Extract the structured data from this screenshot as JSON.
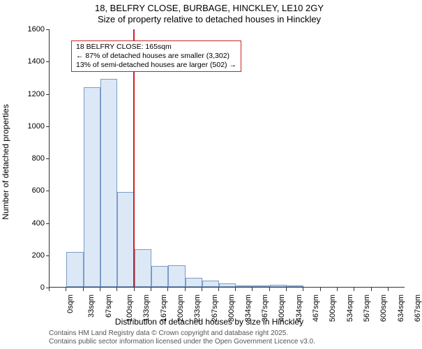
{
  "title_line1": "18, BELFRY CLOSE, BURBAGE, HINCKLEY, LE10 2GY",
  "title_line2": "Size of property relative to detached houses in Hinckley",
  "ylabel": "Number of detached properties",
  "xlabel": "Distribution of detached houses by size in Hinckley",
  "footer1": "Contains HM Land Registry data © Crown copyright and database right 2025.",
  "footer2": "Contains public sector information licensed under the Open Government Licence v3.0.",
  "chart": {
    "type": "histogram",
    "ylim": [
      0,
      1600
    ],
    "ytick_step": 200,
    "bar_fill": "#dce8f6",
    "bar_stroke": "#7a9cc6",
    "reference_line_color": "#cc2222",
    "reference_line_x": 165,
    "annotation_border": "#cc2222",
    "bins": [
      {
        "start": 0,
        "end": 33,
        "count": 0,
        "label": "0sqm"
      },
      {
        "start": 33,
        "end": 67,
        "count": 215,
        "label": "33sqm"
      },
      {
        "start": 67,
        "end": 100,
        "count": 1235,
        "label": "67sqm"
      },
      {
        "start": 100,
        "end": 133,
        "count": 1290,
        "label": "100sqm"
      },
      {
        "start": 133,
        "end": 167,
        "count": 590,
        "label": "133sqm"
      },
      {
        "start": 167,
        "end": 200,
        "count": 235,
        "label": "167sqm"
      },
      {
        "start": 200,
        "end": 233,
        "count": 130,
        "label": "200sqm"
      },
      {
        "start": 233,
        "end": 267,
        "count": 135,
        "label": "233sqm"
      },
      {
        "start": 267,
        "end": 300,
        "count": 55,
        "label": "267sqm"
      },
      {
        "start": 300,
        "end": 334,
        "count": 40,
        "label": "300sqm"
      },
      {
        "start": 334,
        "end": 367,
        "count": 20,
        "label": "334sqm"
      },
      {
        "start": 367,
        "end": 400,
        "count": 5,
        "label": "367sqm"
      },
      {
        "start": 400,
        "end": 434,
        "count": 5,
        "label": "400sqm"
      },
      {
        "start": 434,
        "end": 467,
        "count": 15,
        "label": "434sqm"
      },
      {
        "start": 467,
        "end": 500,
        "count": 5,
        "label": "467sqm"
      },
      {
        "start": 500,
        "end": 534,
        "count": 0,
        "label": "500sqm"
      },
      {
        "start": 534,
        "end": 567,
        "count": 0,
        "label": "534sqm"
      },
      {
        "start": 567,
        "end": 600,
        "count": 0,
        "label": "567sqm"
      },
      {
        "start": 600,
        "end": 634,
        "count": 0,
        "label": "600sqm"
      },
      {
        "start": 634,
        "end": 667,
        "count": 0,
        "label": "634sqm"
      },
      {
        "start": 667,
        "end": 700,
        "count": 0,
        "label": "667sqm"
      }
    ],
    "x_data_min": 0,
    "x_data_max": 700,
    "annotation": {
      "line1": "18 BELFRY CLOSE: 165sqm",
      "line2": "← 87% of detached houses are smaller (3,302)",
      "line3": "13% of semi-detached houses are larger (502) →"
    }
  }
}
